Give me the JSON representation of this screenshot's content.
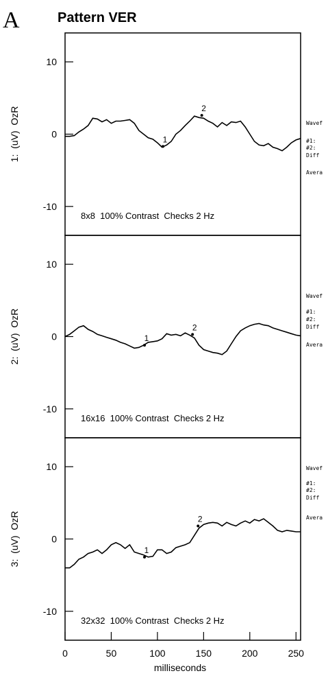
{
  "label": "A",
  "title": "Pattern VER",
  "chart_data": [
    {
      "type": "line",
      "ylabel": "1:  (uV)  OzR",
      "annotation": "8x8  100% Contrast  Checks 2 Hz",
      "side_labels": [
        "Wavef",
        "#1:",
        "#2:",
        "Diff",
        "Avera"
      ],
      "x": [
        0,
        5,
        10,
        15,
        20,
        25,
        30,
        35,
        40,
        45,
        50,
        55,
        60,
        65,
        70,
        75,
        80,
        85,
        90,
        95,
        100,
        105,
        110,
        115,
        120,
        125,
        130,
        135,
        140,
        145,
        150,
        155,
        160,
        165,
        170,
        175,
        180,
        185,
        190,
        195,
        200,
        205,
        210,
        215,
        220,
        225,
        230,
        235,
        240,
        245,
        250,
        255
      ],
      "values": [
        -0.3,
        -0.3,
        -0.2,
        0.3,
        0.7,
        1.2,
        2.2,
        2.1,
        1.7,
        2.0,
        1.5,
        1.8,
        1.8,
        1.9,
        2.0,
        1.5,
        0.5,
        0,
        -0.5,
        -0.7,
        -1.2,
        -1.8,
        -1.5,
        -1.0,
        0,
        0.5,
        1.2,
        1.8,
        2.5,
        2.3,
        2.2,
        1.8,
        1.5,
        1.0,
        1.6,
        1.2,
        1.7,
        1.6,
        1.8,
        1.0,
        0,
        -1.0,
        -1.5,
        -1.6,
        -1.3,
        -1.8,
        -2.0,
        -2.3,
        -1.8,
        -1.2,
        -0.8,
        -0.6
      ],
      "markers": [
        {
          "label": "1",
          "x": 106,
          "y": -1.7
        },
        {
          "label": "2",
          "x": 148,
          "y": 2.6
        }
      ],
      "color": "#000000",
      "xlim": [
        0,
        255
      ],
      "ylim": [
        -14,
        14
      ],
      "yticks": [
        -10,
        0,
        10
      ]
    },
    {
      "type": "line",
      "ylabel": "2:  (uV)  OzR",
      "annotation": "16x16  100% Contrast  Checks 2 Hz",
      "side_labels": [
        "Wavef",
        "#1:",
        "#2:",
        "Diff",
        "Avera"
      ],
      "x": [
        0,
        5,
        10,
        15,
        20,
        25,
        30,
        35,
        40,
        45,
        50,
        55,
        60,
        65,
        70,
        75,
        80,
        85,
        90,
        95,
        100,
        105,
        110,
        115,
        120,
        125,
        130,
        135,
        140,
        145,
        150,
        155,
        160,
        165,
        170,
        175,
        180,
        185,
        190,
        195,
        200,
        205,
        210,
        215,
        220,
        225,
        230,
        235,
        240,
        245,
        250,
        255
      ],
      "values": [
        0,
        0.3,
        0.8,
        1.3,
        1.5,
        1.0,
        0.7,
        0.3,
        0.1,
        -0.1,
        -0.3,
        -0.5,
        -0.8,
        -1.0,
        -1.3,
        -1.6,
        -1.5,
        -1.2,
        -0.8,
        -0.7,
        -0.6,
        -0.3,
        0.4,
        0.2,
        0.3,
        0.1,
        0.5,
        0.2,
        -0.2,
        -1.2,
        -1.8,
        -2.0,
        -2.2,
        -2.3,
        -2.5,
        -2.0,
        -1.0,
        0,
        0.8,
        1.2,
        1.5,
        1.7,
        1.8,
        1.6,
        1.5,
        1.2,
        1.0,
        0.8,
        0.6,
        0.4,
        0.2,
        0.1
      ],
      "markers": [
        {
          "label": "1",
          "x": 86,
          "y": -1.2
        },
        {
          "label": "2",
          "x": 138,
          "y": 0.3
        }
      ],
      "color": "#000000",
      "xlim": [
        0,
        255
      ],
      "ylim": [
        -14,
        14
      ],
      "yticks": [
        -10,
        0,
        10
      ]
    },
    {
      "type": "line",
      "ylabel": "3:  (uV)  OzR",
      "annotation": "32x32  100% Contrast  Checks 2 Hz",
      "side_labels": [
        "Wavef",
        "#1:",
        "#2:",
        "Diff",
        "Avera"
      ],
      "x": [
        0,
        5,
        10,
        15,
        20,
        25,
        30,
        35,
        40,
        45,
        50,
        55,
        60,
        65,
        70,
        75,
        80,
        85,
        90,
        95,
        100,
        105,
        110,
        115,
        120,
        125,
        130,
        135,
        140,
        145,
        150,
        155,
        160,
        165,
        170,
        175,
        180,
        185,
        190,
        195,
        200,
        205,
        210,
        215,
        220,
        225,
        230,
        235,
        240,
        245,
        250,
        255
      ],
      "values": [
        -4.0,
        -4.0,
        -3.5,
        -2.8,
        -2.5,
        -2.0,
        -1.8,
        -1.5,
        -2.0,
        -1.5,
        -0.8,
        -0.5,
        -0.8,
        -1.3,
        -0.8,
        -1.8,
        -2.0,
        -2.2,
        -2.5,
        -2.4,
        -1.5,
        -1.5,
        -2.0,
        -1.8,
        -1.2,
        -1.0,
        -0.8,
        -0.5,
        0.5,
        1.5,
        2.0,
        2.2,
        2.3,
        2.2,
        1.8,
        2.3,
        2.0,
        1.8,
        2.2,
        2.5,
        2.2,
        2.7,
        2.5,
        2.8,
        2.3,
        1.8,
        1.2,
        1.0,
        1.2,
        1.1,
        1.0,
        1.0
      ],
      "markers": [
        {
          "label": "1",
          "x": 86,
          "y": -2.5
        },
        {
          "label": "2",
          "x": 144,
          "y": 1.8
        }
      ],
      "color": "#000000",
      "xlim": [
        0,
        255
      ],
      "ylim": [
        -14,
        14
      ],
      "yticks": [
        -10,
        0,
        10
      ],
      "xticks": [
        0,
        50,
        100,
        150,
        200,
        250
      ],
      "xlabel": "milliseconds"
    }
  ]
}
